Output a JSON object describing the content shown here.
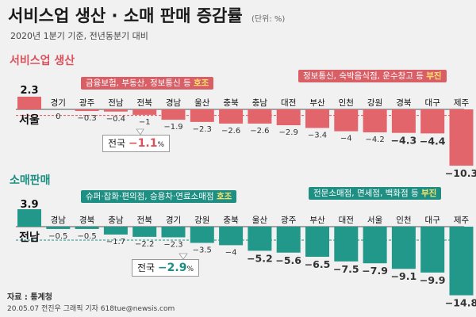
{
  "header": {
    "title": "서비스업 생산 · 소매 판매 증감률",
    "unit": "(단위: %)",
    "subtitle": "2020년 1분기 기준, 전년동분기 대비"
  },
  "colors": {
    "service": "#e2656b",
    "retail": "#22988a",
    "service_badge": "#d95f67",
    "retail_badge": "#1f8f83"
  },
  "chart_data": [
    {
      "type": "bar",
      "title": "서비스업 생산",
      "categories": [
        "서울",
        "경기",
        "광주",
        "전남",
        "전북",
        "경남",
        "울산",
        "충북",
        "충남",
        "대전",
        "부산",
        "인천",
        "강원",
        "경북",
        "대구",
        "제주"
      ],
      "value_labels": [
        "2.3",
        "0",
        "−0.3",
        "−0.4",
        "−1",
        "−1.9",
        "−2.3",
        "−2.6",
        "−2.6",
        "−2.9",
        "−3.4",
        "−4",
        "−4.2",
        "−4.3",
        "−4.4",
        "−10.3"
      ],
      "values": [
        2.3,
        0,
        -0.3,
        -0.4,
        -1,
        -1.9,
        -2.3,
        -2.6,
        -2.6,
        -2.9,
        -3.4,
        -4,
        -4.2,
        -4.3,
        -4.4,
        -10.3
      ],
      "national_label": "전국",
      "national_value": "−1.1",
      "national_unit": "%",
      "national": -1.1,
      "callout_good": {
        "text": "금융보험, 부동산, 정보통신 등 ",
        "highlight": "호조"
      },
      "callout_bad": {
        "text": "정보통신, 숙박음식점, 운수창고 등 ",
        "highlight": "부진"
      }
    },
    {
      "type": "bar",
      "title": "소매판매",
      "categories": [
        "전남",
        "경남",
        "경북",
        "충남",
        "전북",
        "경기",
        "강원",
        "충북",
        "울산",
        "광주",
        "부산",
        "대전",
        "서울",
        "인천",
        "대구",
        "제주"
      ],
      "value_labels": [
        "3.9",
        "−0.5",
        "−0.5",
        "−1.7",
        "−2.2",
        "−2.3",
        "−3.5",
        "−4",
        "−5.2",
        "−5.6",
        "−6.5",
        "−7.5",
        "−7.9",
        "−9.1",
        "−9.9",
        "−14.8"
      ],
      "values": [
        3.9,
        -0.5,
        -0.5,
        -1.7,
        -2.2,
        -2.3,
        -3.5,
        -4,
        -5.2,
        -5.6,
        -6.5,
        -7.5,
        -7.9,
        -9.1,
        -9.9,
        -14.8
      ],
      "national_label": "전국",
      "national_value": "−2.9",
      "national_unit": "%",
      "national": -2.9,
      "callout_good": {
        "text": "슈퍼·잡화·편의점, 승용차·연료소매점 ",
        "highlight": "호조"
      },
      "callout_bad": {
        "text": "전문소매점, 면세점, 백화점 등 ",
        "highlight": "부진"
      }
    }
  ],
  "footer": {
    "source": "자료 : 통계청",
    "credit": "20.05.07 전진우 그래픽 기자 618tue@newsis.com"
  }
}
